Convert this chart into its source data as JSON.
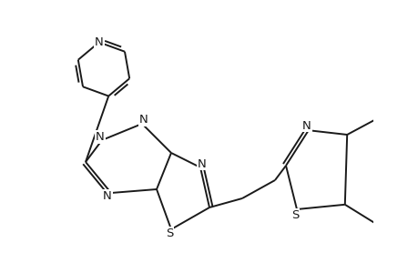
{
  "bg": "#ffffff",
  "lc": "#1a1a1a",
  "lw": 1.4,
  "fs": 9.5,
  "xlim": [
    0.5,
    9.5
  ],
  "ylim": [
    1.5,
    9.0
  ],
  "figsize": [
    4.6,
    3.0
  ],
  "dpi": 100
}
